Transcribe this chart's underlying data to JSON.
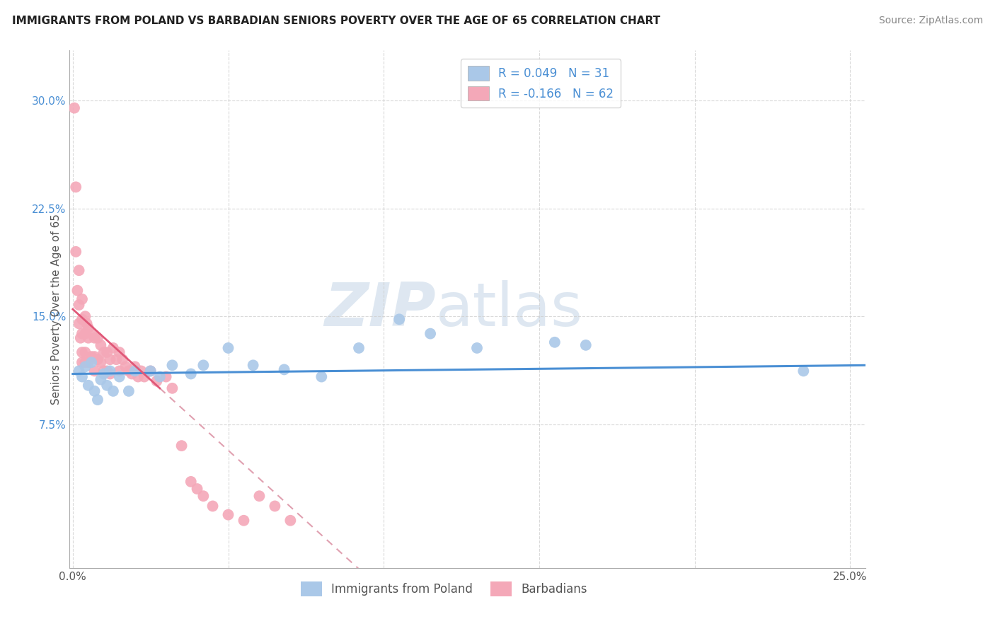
{
  "title": "IMMIGRANTS FROM POLAND VS BARBADIAN SENIORS POVERTY OVER THE AGE OF 65 CORRELATION CHART",
  "source": "Source: ZipAtlas.com",
  "ylabel": "Seniors Poverty Over the Age of 65",
  "xlim": [
    -0.001,
    0.255
  ],
  "ylim": [
    -0.025,
    0.335
  ],
  "blue_color": "#aac8e8",
  "pink_color": "#f4a8b8",
  "blue_line_color": "#4a8fd4",
  "pink_line_color": "#e05878",
  "pink_dash_color": "#e0a0b0",
  "watermark_zip_color": "#c8d8e8",
  "poland_x": [
    0.002,
    0.003,
    0.004,
    0.005,
    0.006,
    0.007,
    0.008,
    0.009,
    0.01,
    0.011,
    0.012,
    0.013,
    0.015,
    0.018,
    0.02,
    0.025,
    0.028,
    0.032,
    0.038,
    0.042,
    0.05,
    0.058,
    0.068,
    0.08,
    0.092,
    0.105,
    0.115,
    0.13,
    0.155,
    0.165,
    0.235
  ],
  "poland_y": [
    0.112,
    0.108,
    0.115,
    0.102,
    0.118,
    0.098,
    0.092,
    0.106,
    0.11,
    0.102,
    0.112,
    0.098,
    0.108,
    0.098,
    0.112,
    0.112,
    0.108,
    0.116,
    0.11,
    0.116,
    0.128,
    0.116,
    0.113,
    0.108,
    0.128,
    0.148,
    0.138,
    0.128,
    0.132,
    0.13,
    0.112
  ],
  "barbadian_x": [
    0.0005,
    0.001,
    0.001,
    0.0015,
    0.002,
    0.002,
    0.002,
    0.0025,
    0.003,
    0.003,
    0.003,
    0.003,
    0.003,
    0.004,
    0.004,
    0.004,
    0.004,
    0.0045,
    0.005,
    0.005,
    0.005,
    0.006,
    0.006,
    0.007,
    0.007,
    0.007,
    0.008,
    0.008,
    0.009,
    0.009,
    0.01,
    0.01,
    0.011,
    0.011,
    0.012,
    0.012,
    0.013,
    0.014,
    0.015,
    0.015,
    0.016,
    0.017,
    0.018,
    0.019,
    0.02,
    0.021,
    0.022,
    0.023,
    0.025,
    0.027,
    0.03,
    0.032,
    0.035,
    0.038,
    0.04,
    0.042,
    0.045,
    0.05,
    0.055,
    0.06,
    0.065,
    0.07
  ],
  "barbadian_y": [
    0.295,
    0.24,
    0.195,
    0.168,
    0.182,
    0.158,
    0.145,
    0.135,
    0.162,
    0.148,
    0.138,
    0.125,
    0.118,
    0.15,
    0.138,
    0.125,
    0.118,
    0.145,
    0.142,
    0.135,
    0.118,
    0.138,
    0.122,
    0.135,
    0.122,
    0.112,
    0.135,
    0.12,
    0.13,
    0.118,
    0.125,
    0.112,
    0.125,
    0.112,
    0.12,
    0.11,
    0.128,
    0.12,
    0.125,
    0.112,
    0.12,
    0.115,
    0.112,
    0.11,
    0.115,
    0.108,
    0.112,
    0.108,
    0.112,
    0.105,
    0.108,
    0.1,
    0.06,
    0.035,
    0.03,
    0.025,
    0.018,
    0.012,
    0.008,
    0.025,
    0.018,
    0.008
  ]
}
